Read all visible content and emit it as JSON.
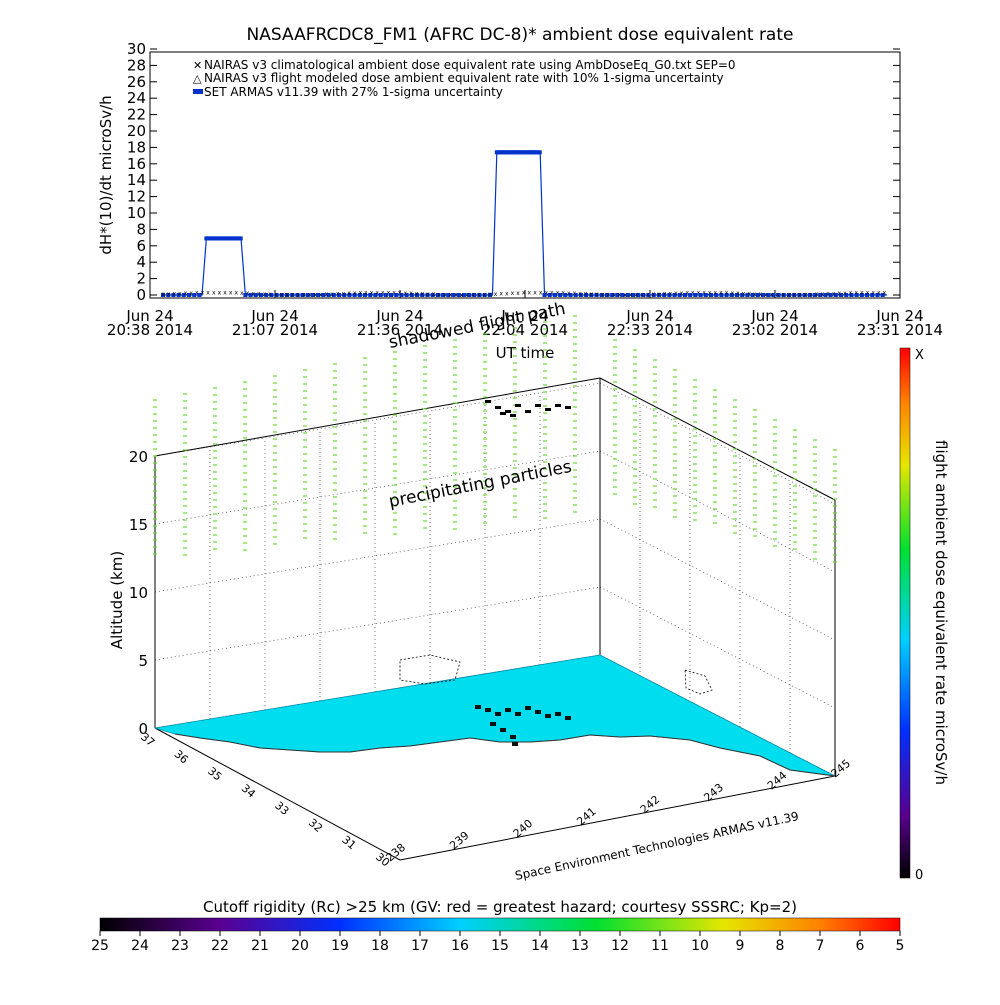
{
  "figure": {
    "title": "NASAAFRCDC8_FM1 (AFRC DC-8)* ambient dose equivalent rate",
    "credit": "Space Environment Technologies ARMAS v11.39",
    "colorbar_label": "flight ambient dose equivalent rate microSv/h",
    "colorbar_top": "X",
    "colorbar_bottom": "0",
    "rigidity_label": "Cutoff rigidity (Rc) >25 km (GV: red = greatest hazard; courtesy SSSRC; Kp=2)",
    "rigidity_ticks": [
      "25",
      "24",
      "23",
      "22",
      "21",
      "20",
      "19",
      "18",
      "17",
      "16",
      "15",
      "14",
      "13",
      "12",
      "11",
      "10",
      "9",
      "8",
      "7",
      "6",
      "5"
    ],
    "annotations": [
      "shadowed flight path",
      "precipitating particles"
    ],
    "colors": {
      "armas": "#0033cc",
      "nairas": "#e05050",
      "particles": "#66dd33",
      "surface": "#00ddee",
      "track": "#000000"
    }
  },
  "chart_data": [
    {
      "type": "line",
      "title": "NASAAFRCDC8_FM1 (AFRC DC-8)* ambient dose equivalent rate",
      "xlabel": "UT time",
      "ylabel": "dH*(10)/dt microSv/h",
      "ylim": [
        0,
        30
      ],
      "yticks": [
        "0",
        "2",
        "4",
        "6",
        "8",
        "10",
        "12",
        "14",
        "16",
        "18",
        "20",
        "22",
        "24",
        "26",
        "28",
        "30"
      ],
      "xticks": [
        {
          "date": "Jun 24",
          "time": "20:38 2014"
        },
        {
          "date": "Jun 24",
          "time": "21:07 2014"
        },
        {
          "date": "Jun 24",
          "time": "21:36 2014"
        },
        {
          "date": "Jun 24",
          "time": "22:04 2014"
        },
        {
          "date": "Jun 24",
          "time": "22:33 2014"
        },
        {
          "date": "Jun 24",
          "time": "23:02 2014"
        },
        {
          "date": "Jun 24",
          "time": "23:31 2014"
        }
      ],
      "legend_position": "top-left",
      "series": [
        {
          "name": "NAIRAS v3 climatological ambient dose equivalent rate using AmbDoseEq_G0.txt SEP=0",
          "marker": "x",
          "x": [
            "20:41",
            "21:30",
            "22:00",
            "22:30",
            "23:00",
            "23:28"
          ],
          "values": [
            0.3,
            0.4,
            0.4,
            0.3,
            0.4,
            0.3
          ]
        },
        {
          "name": "NAIRAS v3 flight modeled dose ambient equivalent rate with 10% 1-sigma uncertainty",
          "marker": "triangle",
          "x": [
            "20:41",
            "21:30",
            "22:00",
            "22:30",
            "23:00",
            "23:28"
          ],
          "values": [
            0.0,
            0.0,
            0.0,
            0.0,
            0.0,
            0.0
          ]
        },
        {
          "name": "SET ARMAS v11.39 with 27% 1-sigma uncertainty",
          "marker": "square",
          "x": [
            "20:41",
            "20:50",
            "20:51",
            "20:59",
            "21:00",
            "21:57",
            "21:58",
            "22:08",
            "22:09",
            "23:28"
          ],
          "values": [
            0,
            0,
            6.9,
            6.9,
            0,
            0,
            17.4,
            17.4,
            0,
            0
          ]
        }
      ]
    },
    {
      "type": "scatter",
      "xlabel": "",
      "ylabel": "Altitude (km)",
      "zlim": [
        0,
        20
      ],
      "zticks": [
        "0",
        "5",
        "10",
        "15",
        "20"
      ],
      "latitude_ticks": [
        "30",
        "31",
        "32",
        "33",
        "34",
        "35",
        "36",
        "37"
      ],
      "longitude_ticks": [
        "238",
        "239",
        "240",
        "241",
        "242",
        "243",
        "244",
        "245"
      ],
      "note": "3D view of flight track over Southern California with precipitating particle columns"
    }
  ]
}
